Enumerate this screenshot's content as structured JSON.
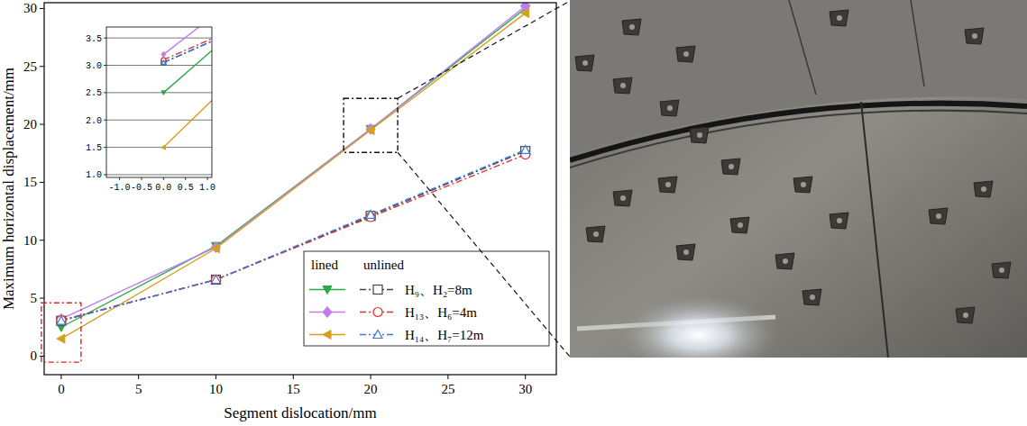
{
  "chart_data": {
    "type": "line",
    "x_label": "Segment dislocation/mm",
    "y_label": "Maximum horizontal displacement/mm",
    "x": [
      0,
      10,
      20,
      30
    ],
    "xlim": [
      -1.1,
      32
    ],
    "ylim": [
      -1.6,
      30.5
    ],
    "xticks": [
      0,
      5,
      10,
      15,
      20,
      25,
      30
    ],
    "yticks": [
      0,
      5,
      10,
      15,
      20,
      25,
      30
    ],
    "legend": "lower right",
    "legend_columns": [
      "lined",
      "unlined"
    ],
    "series": [
      {
        "name": "H₉、H₂=8m",
        "color": "#2ca848",
        "marker": "triangle-down",
        "line_style": "solid",
        "values": [
          2.5,
          9.5,
          19.6,
          30.0
        ]
      },
      {
        "name": "H₉、H₂=8m",
        "color": "#444444",
        "marker": "square-open",
        "line_style": "dashdot",
        "values": [
          3.05,
          6.6,
          12.1,
          17.7
        ]
      },
      {
        "name": "H₁₃、H₆=4m",
        "color": "#c27cf0",
        "marker": "diamond",
        "line_style": "solid",
        "values": [
          3.2,
          9.4,
          19.6,
          30.2
        ]
      },
      {
        "name": "H₁₃、H₆=4m",
        "color": "#e0302a",
        "marker": "circle-open",
        "line_style": "dashdot",
        "values": [
          3.1,
          6.6,
          12.0,
          17.4
        ]
      },
      {
        "name": "H₁₄、H₇=12m",
        "color": "#d4a020",
        "marker": "triangle-left",
        "line_style": "solid",
        "values": [
          1.5,
          9.3,
          19.5,
          29.6
        ]
      },
      {
        "name": "H₁₄、H₇=12m",
        "color": "#3a78e0",
        "marker": "triangle-up-open",
        "line_style": "dashdot",
        "values": [
          3.05,
          6.6,
          12.2,
          17.8
        ]
      }
    ],
    "inset": {
      "xlim": [
        -1.3,
        1.1
      ],
      "ylim": [
        0.95,
        3.7
      ],
      "xticks": [
        {
          "value": -1,
          "label": "-1.0"
        },
        {
          "value": -0.5,
          "label": "-0.5"
        },
        {
          "value": 0,
          "label": "0.0"
        },
        {
          "value": 0.5,
          "label": "0.5"
        },
        {
          "value": 1,
          "label": "1.0"
        }
      ],
      "yticks": [
        {
          "value": 1,
          "label": "1.0"
        },
        1.5,
        {
          "value": 2,
          "label": "2.0"
        },
        2.5,
        {
          "value": 3,
          "label": "3.0"
        },
        3.5
      ],
      "grid": true
    }
  }
}
